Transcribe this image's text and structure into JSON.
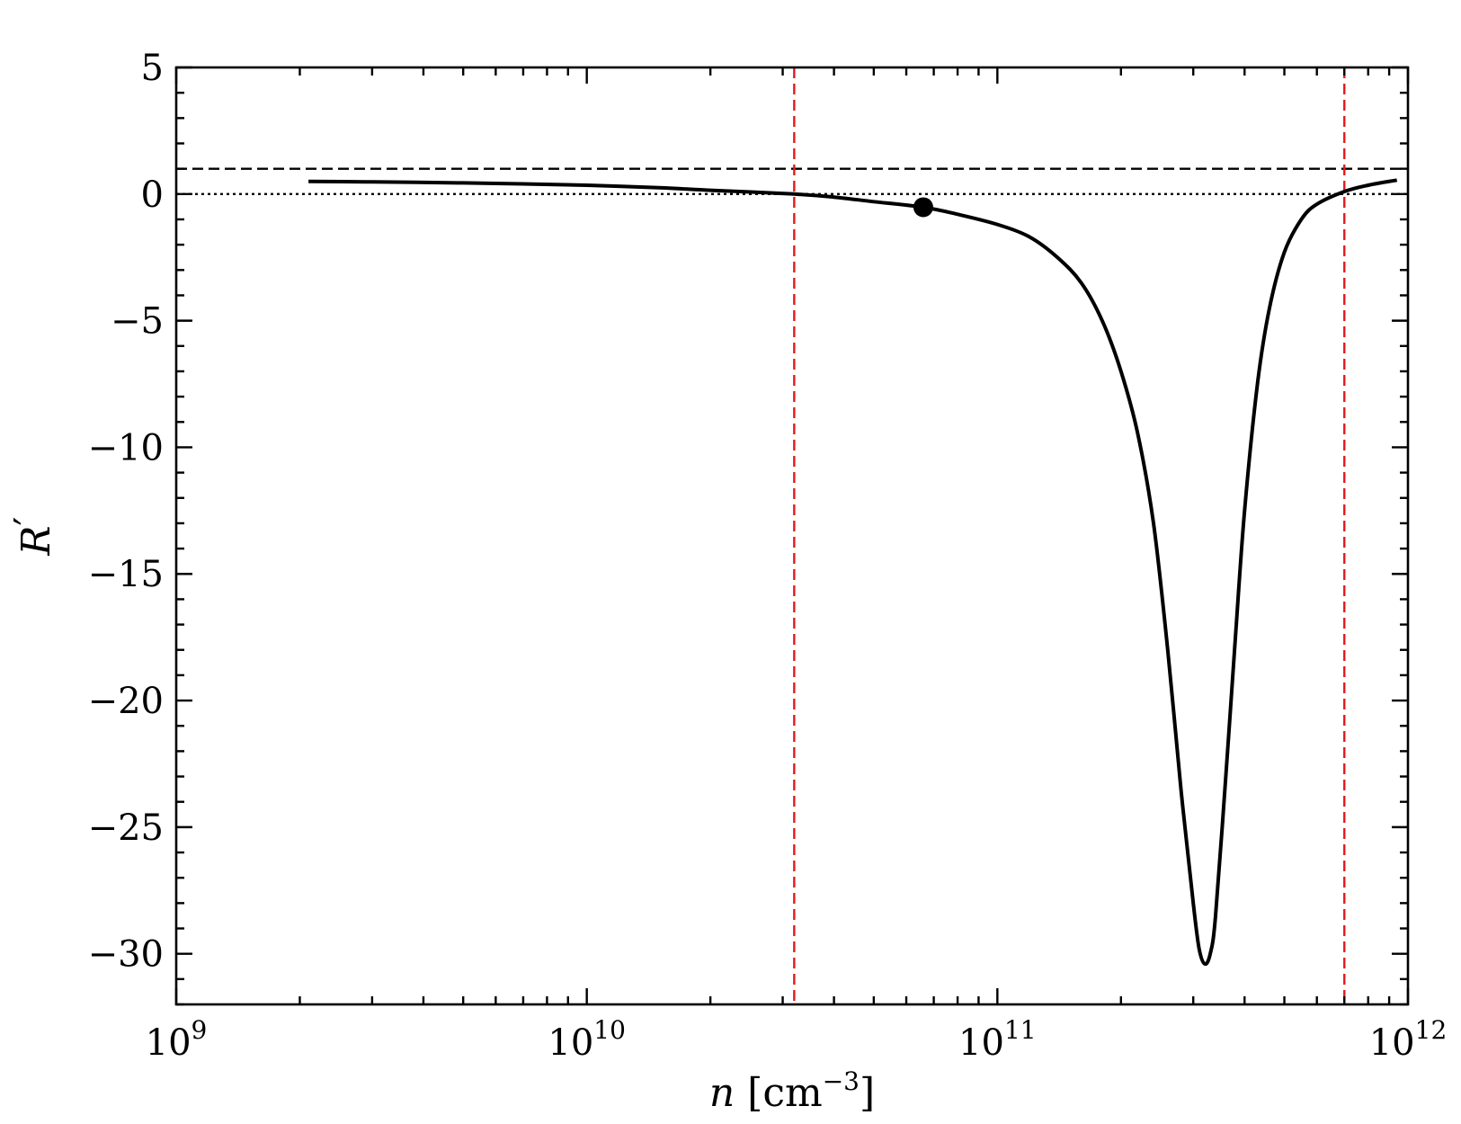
{
  "chart_data": {
    "type": "line",
    "title": "",
    "xlabel": {
      "var": "n",
      "unit_open": " [cm",
      "unit_exp": "−3",
      "unit_close": "]"
    },
    "ylabel": {
      "var": "R",
      "prime": "′"
    },
    "xscale": "log",
    "xlim": [
      1000000000,
      1000000000000
    ],
    "ylim": [
      -32,
      5
    ],
    "x_ticks": [
      {
        "value": 1000000000,
        "base": "10",
        "exp": "9"
      },
      {
        "value": 10000000000,
        "base": "10",
        "exp": "10"
      },
      {
        "value": 100000000000,
        "base": "10",
        "exp": "11"
      },
      {
        "value": 1000000000000,
        "base": "10",
        "exp": "12"
      }
    ],
    "y_ticks": [
      {
        "value": 5,
        "label": "5"
      },
      {
        "value": 0,
        "label": "0"
      },
      {
        "value": -5,
        "label": "−5"
      },
      {
        "value": -10,
        "label": "−10"
      },
      {
        "value": -15,
        "label": "−15"
      },
      {
        "value": -20,
        "label": "−20"
      },
      {
        "value": -25,
        "label": "−25"
      },
      {
        "value": -30,
        "label": "−30"
      }
    ],
    "y_minor_step": 1,
    "grid": false,
    "series": [
      {
        "style": "solid",
        "color": "#000000",
        "points": [
          [
            2100000000.0,
            0.5
          ],
          [
            3000000000.0,
            0.48
          ],
          [
            5000000000.0,
            0.44
          ],
          [
            7000000000.0,
            0.4
          ],
          [
            10000000000.0,
            0.35
          ],
          [
            15000000000.0,
            0.25
          ],
          [
            20000000000.0,
            0.15
          ],
          [
            32000000000.0,
            0.0
          ],
          [
            40000000000.0,
            -0.12
          ],
          [
            50000000000.0,
            -0.3
          ],
          [
            66000000000.0,
            -0.52
          ],
          [
            80000000000.0,
            -0.8
          ],
          [
            100000000000.0,
            -1.2
          ],
          [
            120000000000.0,
            -1.7
          ],
          [
            140000000000.0,
            -2.5
          ],
          [
            160000000000.0,
            -3.5
          ],
          [
            180000000000.0,
            -5.0
          ],
          [
            200000000000.0,
            -7.0
          ],
          [
            220000000000.0,
            -9.5
          ],
          [
            240000000000.0,
            -13.0
          ],
          [
            260000000000.0,
            -18.0
          ],
          [
            280000000000.0,
            -23.5
          ],
          [
            300000000000.0,
            -28.0
          ],
          [
            310000000000.0,
            -29.8
          ],
          [
            320000000000.0,
            -30.4
          ],
          [
            330000000000.0,
            -30.0
          ],
          [
            340000000000.0,
            -28.5
          ],
          [
            360000000000.0,
            -23.0
          ],
          [
            380000000000.0,
            -17.5
          ],
          [
            400000000000.0,
            -12.5
          ],
          [
            430000000000.0,
            -7.5
          ],
          [
            460000000000.0,
            -4.5
          ],
          [
            500000000000.0,
            -2.3
          ],
          [
            550000000000.0,
            -1.0
          ],
          [
            600000000000.0,
            -0.4
          ],
          [
            700000000000.0,
            0.1
          ],
          [
            800000000000.0,
            0.35
          ],
          [
            940000000000.0,
            0.55
          ]
        ]
      }
    ],
    "marker": {
      "x": 66000000000.0,
      "y": -0.52,
      "color": "#000000"
    },
    "reference_lines": {
      "horizontal": [
        {
          "value": 1,
          "style": "dashed",
          "color": "#000000"
        },
        {
          "value": 0,
          "style": "dotted",
          "color": "#000000"
        }
      ],
      "vertical": [
        {
          "value": 32000000000.0,
          "style": "dashed",
          "color": "#e31a1c"
        },
        {
          "value": 700000000000.0,
          "style": "dashed",
          "color": "#e31a1c"
        }
      ]
    }
  }
}
